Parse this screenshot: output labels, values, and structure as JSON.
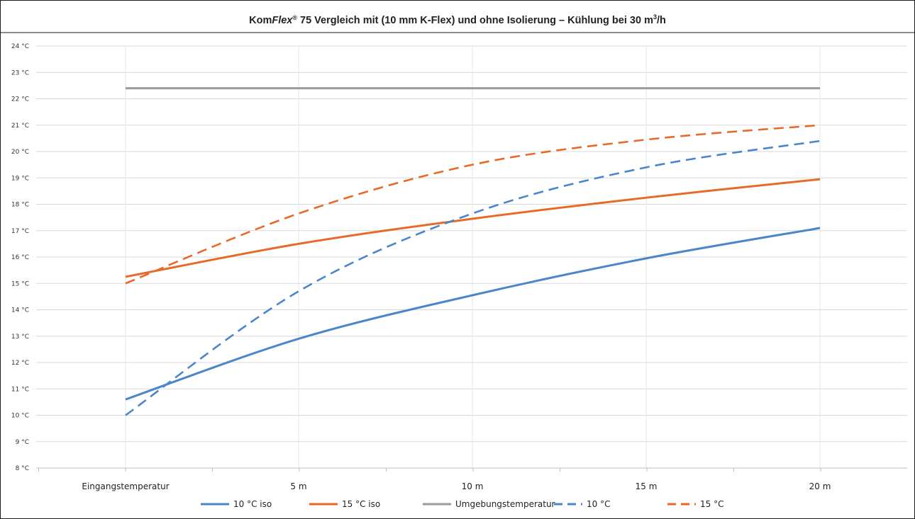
{
  "chart_data": {
    "type": "line",
    "title_parts": [
      "Kom",
      "Flex",
      "®",
      " 75 Vergleich mit (10 mm K-Flex) und ohne Isolierung – Kühlung bei 30 m",
      "3",
      "/h"
    ],
    "categories": [
      "Eingangstemperatur",
      "5 m",
      "10 m",
      "15 m",
      "20 m"
    ],
    "yticks": [
      "8 °C",
      "9 °C",
      "10 °C",
      "11 °C",
      "12 °C",
      "13 °C",
      "14 °C",
      "15 °C",
      "16 °C",
      "17 °C",
      "18 °C",
      "19 °C",
      "20 °C",
      "21 °C",
      "22 °C",
      "23 °C",
      "24 °C"
    ],
    "ylim": [
      8,
      24
    ],
    "xlabel": "",
    "ylabel": "",
    "grid": true,
    "legend_position": "bottom",
    "series": [
      {
        "name": "10 °C iso",
        "values": [
          10.6,
          12.9,
          14.55,
          15.95,
          17.1
        ],
        "color": "#4a86c8",
        "style": "solid"
      },
      {
        "name": "15 °C iso",
        "values": [
          15.25,
          16.5,
          17.45,
          18.25,
          18.95
        ],
        "color": "#e86a2a",
        "style": "solid"
      },
      {
        "name": "Umgebungstemperatur",
        "values": [
          22.4,
          22.4,
          22.4,
          22.4,
          22.4
        ],
        "color": "#9b9b9b",
        "style": "solid"
      },
      {
        "name": "10 °C",
        "values": [
          10.0,
          14.7,
          17.65,
          19.4,
          20.4
        ],
        "color": "#4a86c8",
        "style": "dashed"
      },
      {
        "name": "15 °C",
        "values": [
          15.0,
          17.65,
          19.5,
          20.45,
          21.0
        ],
        "color": "#e86a2a",
        "style": "dashed"
      }
    ]
  }
}
